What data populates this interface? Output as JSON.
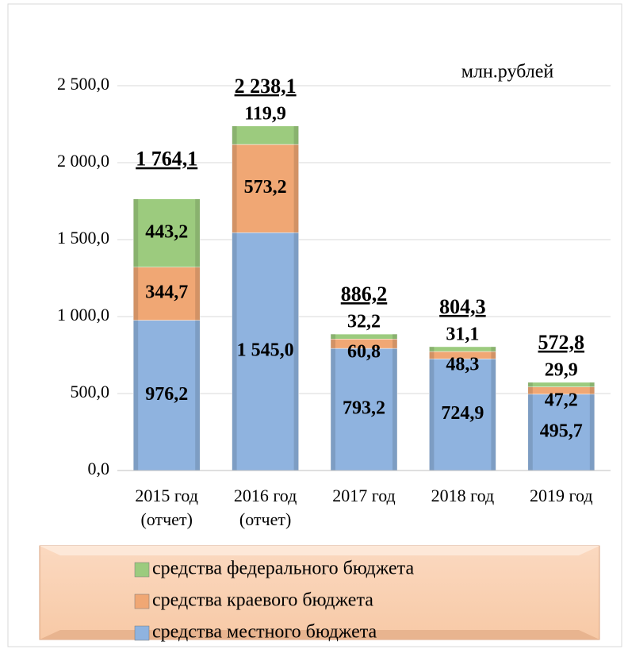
{
  "chart_data": {
    "type": "stacked_bar",
    "annotation": "млн.рублей",
    "categories": [
      "2015 год\n(отчет)",
      "2016 год\n(отчет)",
      "2017 год",
      "2018 год",
      "2019 год"
    ],
    "series": [
      {
        "name": "средства местного бюджета",
        "color": "#8fb3df",
        "values": [
          976.2,
          1545.0,
          793.2,
          724.9,
          495.7
        ],
        "value_labels": [
          "976,2",
          "1 545,0",
          "793,2",
          "724,9",
          "495,7"
        ]
      },
      {
        "name": "средства краевого бюджета",
        "color": "#f0a774",
        "values": [
          344.7,
          573.2,
          60.8,
          48.3,
          47.2
        ],
        "value_labels": [
          "344,7",
          "573,2",
          "60,8",
          "48,3",
          "47,2"
        ]
      },
      {
        "name": "средства федерального бюджета",
        "color": "#9ccb7e",
        "values": [
          443.2,
          119.9,
          32.2,
          31.1,
          29.9
        ],
        "value_labels": [
          "443,2",
          "119,9",
          "32,2",
          "31,1",
          "29,9"
        ]
      }
    ],
    "totals": [
      1764.1,
      2238.1,
      886.2,
      804.3,
      572.8
    ],
    "total_labels": [
      "1 764,1",
      "2 238,1",
      "886,2",
      "804,3",
      "572,8"
    ],
    "ylim": [
      0,
      2500
    ],
    "yticks": [
      {
        "value": 0,
        "label": "0,0"
      },
      {
        "value": 500,
        "label": "500,0"
      },
      {
        "value": 1000,
        "label": "1 000,0"
      },
      {
        "value": 1500,
        "label": "1 500,0"
      },
      {
        "value": 2000,
        "label": "2 000,0"
      },
      {
        "value": 2500,
        "label": "2 500,0"
      }
    ],
    "grid": true
  }
}
